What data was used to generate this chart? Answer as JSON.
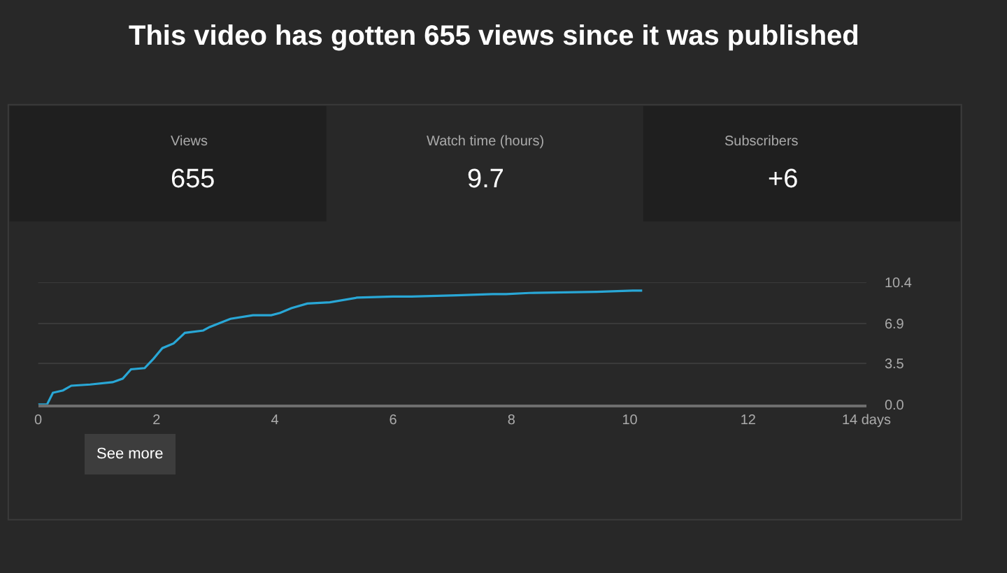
{
  "chart_data": [
    {
      "type": "other",
      "title": "This video has gotten 655 views since it was published",
      "annotations": [
        "Views",
        "655",
        "Watch time (hours)",
        "9.7",
        "Subscribers",
        "+6"
      ]
    },
    {
      "type": "line",
      "x": [
        0,
        0.15,
        0.25,
        0.42,
        0.56,
        0.88,
        1.26,
        1.43,
        1.57,
        1.8,
        1.95,
        2.1,
        2.29,
        2.48,
        2.79,
        2.9,
        3.25,
        3.63,
        3.94,
        4.09,
        4.28,
        4.55,
        4.93,
        5.39,
        6.0,
        6.31,
        7.07,
        7.68,
        7.91,
        8.3,
        9.44,
        10.05,
        10.21
      ],
      "series": [
        {
          "color": "#29a7d6",
          "values": [
            0,
            0,
            1.0,
            1.2,
            1.6,
            1.7,
            1.9,
            2.2,
            3.0,
            3.1,
            3.9,
            4.8,
            5.2,
            6.1,
            6.3,
            6.6,
            7.3,
            7.6,
            7.6,
            7.8,
            8.2,
            8.6,
            8.7,
            9.1,
            9.2,
            9.2,
            9.3,
            9.4,
            9.4,
            9.5,
            9.6,
            9.7,
            9.7
          ]
        }
      ],
      "xlim": [
        0,
        14
      ],
      "xticks": [
        0,
        2,
        4,
        6,
        8,
        10,
        12,
        {
          "value": 14,
          "label": "14 days"
        }
      ],
      "ylim": [
        0,
        10.4
      ],
      "yticks": [
        {
          "value": 0,
          "label": "0.0"
        },
        3.5,
        6.9,
        10.4
      ],
      "grid": "y",
      "marker": "none",
      "line_style": "solid",
      "annotations": [
        "See more"
      ]
    }
  ]
}
